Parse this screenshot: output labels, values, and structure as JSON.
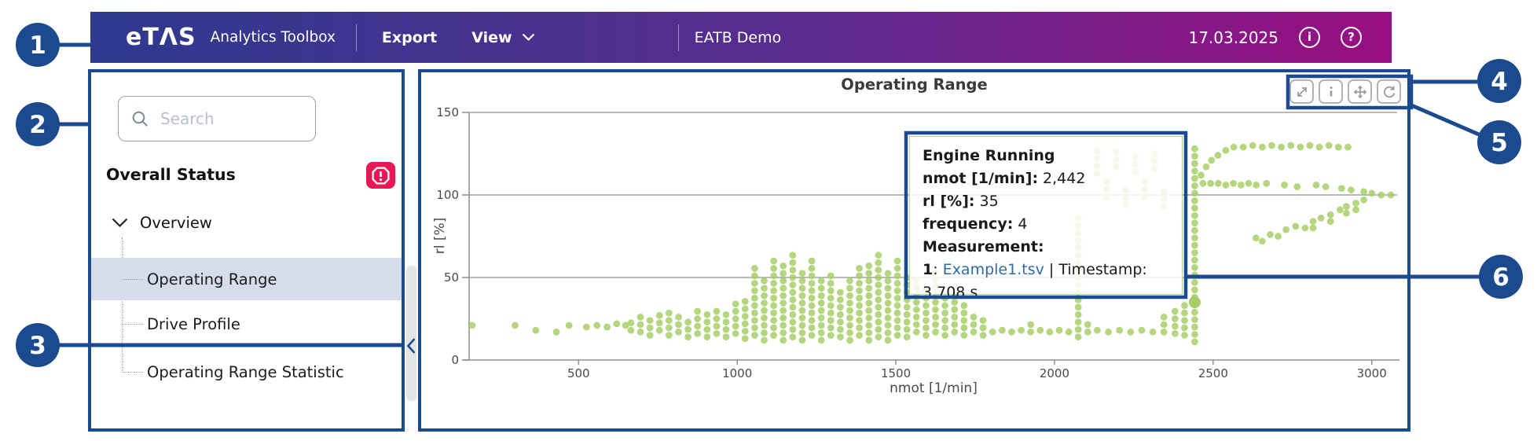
{
  "topbar": {
    "logo": "eTΛS",
    "product": "Analytics Toolbox",
    "menu_export": "Export",
    "menu_view": "View",
    "project": "EATB Demo",
    "date": "17.03.2025",
    "info_icon": "i",
    "help_icon": "?"
  },
  "sidebar": {
    "search_placeholder": "Search",
    "section_title": "Overall Status",
    "tree": {
      "root": "Overview",
      "items": [
        "Operating Range",
        "Drive Profile",
        "Operating Range Statistic"
      ],
      "selected": "Operating Range"
    }
  },
  "chart_data": {
    "type": "scatter",
    "title": "Operating Range",
    "xlabel": "nmot [1/min]",
    "ylabel": "rl [%]",
    "xlim": [
      155,
      3080
    ],
    "ylim": [
      0,
      150
    ],
    "xticks": [
      500,
      1000,
      1500,
      2000,
      2500,
      3000
    ],
    "yticks": [
      0,
      50,
      100,
      150
    ],
    "grid": "horizontal",
    "point_color": "#a4ce63",
    "hovered_point": {
      "x": 2442,
      "y": 35,
      "frequency": 4,
      "series": "Engine Running"
    },
    "columns": [
      [
        665,
        18,
        26
      ],
      [
        695,
        17,
        27
      ],
      [
        725,
        15,
        24
      ],
      [
        755,
        18,
        28
      ],
      [
        785,
        15,
        30
      ],
      [
        815,
        17,
        29
      ],
      [
        845,
        14,
        27
      ],
      [
        875,
        16,
        31
      ],
      [
        905,
        14,
        30
      ],
      [
        935,
        16,
        32
      ],
      [
        965,
        14,
        31
      ],
      [
        995,
        16,
        34
      ],
      [
        1025,
        13,
        36
      ],
      [
        1055,
        15,
        56
      ],
      [
        1085,
        12,
        50
      ],
      [
        1115,
        15,
        64
      ],
      [
        1145,
        12,
        58
      ],
      [
        1175,
        14,
        65
      ],
      [
        1205,
        12,
        54
      ],
      [
        1235,
        15,
        61
      ],
      [
        1265,
        12,
        49
      ],
      [
        1295,
        15,
        55
      ],
      [
        1325,
        14,
        44
      ],
      [
        1355,
        12,
        51
      ],
      [
        1385,
        15,
        57
      ],
      [
        1415,
        12,
        61
      ],
      [
        1445,
        14,
        66
      ],
      [
        1475,
        12,
        55
      ],
      [
        1505,
        15,
        63
      ],
      [
        1535,
        14,
        53
      ],
      [
        1565,
        17,
        49
      ],
      [
        1595,
        15,
        44
      ],
      [
        1625,
        17,
        53
      ],
      [
        1655,
        15,
        39
      ],
      [
        1685,
        17,
        44
      ],
      [
        1715,
        15,
        33
      ],
      [
        1745,
        17,
        29
      ],
      [
        1775,
        15,
        24
      ],
      [
        1805,
        17,
        21
      ],
      [
        1835,
        18,
        22
      ],
      [
        1865,
        17,
        20
      ],
      [
        1895,
        18,
        21
      ],
      [
        1925,
        17,
        22
      ],
      [
        1955,
        18,
        20
      ],
      [
        1985,
        17,
        21
      ],
      [
        2015,
        18,
        22
      ],
      [
        2045,
        17,
        20
      ],
      [
        2075,
        14,
        88
      ],
      [
        2105,
        17,
        24
      ],
      [
        2135,
        18,
        20
      ],
      [
        2170,
        17,
        20
      ],
      [
        2205,
        18,
        20
      ],
      [
        2240,
        17,
        20
      ],
      [
        2275,
        18,
        20
      ],
      [
        2310,
        17,
        21
      ],
      [
        2345,
        17,
        26
      ],
      [
        2380,
        16,
        30
      ],
      [
        2410,
        15,
        34
      ],
      [
        2442,
        11,
        131
      ],
      [
        2135,
        113,
        128
      ],
      [
        2165,
        99,
        111
      ],
      [
        2195,
        117,
        129
      ],
      [
        2225,
        94,
        107
      ],
      [
        2255,
        114,
        126
      ],
      [
        2285,
        99,
        111
      ],
      [
        2315,
        116,
        127
      ],
      [
        2345,
        93,
        104
      ]
    ],
    "points": [
      [
        165,
        21
      ],
      [
        300,
        21
      ],
      [
        365,
        18
      ],
      [
        430,
        17
      ],
      [
        470,
        21
      ],
      [
        525,
        20
      ],
      [
        558,
        21
      ],
      [
        590,
        20
      ],
      [
        620,
        22
      ],
      [
        648,
        21
      ],
      [
        2462,
        112
      ],
      [
        2478,
        117
      ],
      [
        2495,
        121
      ],
      [
        2515,
        124
      ],
      [
        2540,
        127
      ],
      [
        2565,
        129
      ],
      [
        2595,
        129
      ],
      [
        2625,
        130
      ],
      [
        2655,
        129
      ],
      [
        2685,
        130
      ],
      [
        2715,
        129
      ],
      [
        2745,
        130
      ],
      [
        2775,
        129
      ],
      [
        2805,
        130
      ],
      [
        2835,
        129
      ],
      [
        2865,
        130
      ],
      [
        2895,
        129
      ],
      [
        2925,
        129
      ],
      [
        2468,
        107
      ],
      [
        2492,
        107
      ],
      [
        2516,
        107
      ],
      [
        2540,
        106
      ],
      [
        2564,
        107
      ],
      [
        2588,
        106
      ],
      [
        2612,
        107
      ],
      [
        2636,
        106
      ],
      [
        2668,
        107
      ],
      [
        2725,
        106
      ],
      [
        2765,
        105
      ],
      [
        2825,
        106
      ],
      [
        2855,
        105
      ],
      [
        2905,
        104
      ],
      [
        2935,
        103
      ],
      [
        2975,
        102
      ],
      [
        3000,
        101
      ],
      [
        3030,
        100
      ],
      [
        3060,
        100
      ],
      [
        2635,
        74
      ],
      [
        2655,
        72
      ],
      [
        2680,
        76
      ],
      [
        2705,
        75
      ],
      [
        2730,
        79
      ],
      [
        2760,
        81
      ],
      [
        2790,
        80
      ],
      [
        2815,
        84
      ],
      [
        2815,
        80
      ],
      [
        2840,
        86
      ],
      [
        2870,
        88
      ],
      [
        2870,
        84
      ],
      [
        2900,
        91
      ],
      [
        2920,
        93
      ],
      [
        2920,
        89
      ],
      [
        2950,
        95
      ],
      [
        2950,
        91
      ],
      [
        2975,
        97
      ]
    ]
  },
  "tooltip": {
    "title": "Engine Running",
    "rows": [
      {
        "label": "nmot [1/min]:",
        "value": "2,442"
      },
      {
        "label": "rl [%]:",
        "value": "35"
      },
      {
        "label": "frequency:",
        "value": "4"
      }
    ],
    "measurement_label": "Measurement:",
    "measurement_index": "1",
    "colon_sep": ": ",
    "file": "Example1.tsv",
    "tail": " | Timestamp: 3.708 s"
  },
  "callouts": [
    "1",
    "2",
    "3",
    "4",
    "5",
    "6"
  ],
  "colors": {
    "navy": "#1b4a8f",
    "topbar_left": "#2d3a8e",
    "topbar_mid": "#5b2b90",
    "topbar_right": "#9a0e81",
    "selection_bg": "#d5dded",
    "badge_red": "#e8175a",
    "dot_green": "#a4ce63",
    "link_blue": "#2e6ba5",
    "grid_grey": "#8f8f8f",
    "tick_text": "#4a4a4a"
  }
}
